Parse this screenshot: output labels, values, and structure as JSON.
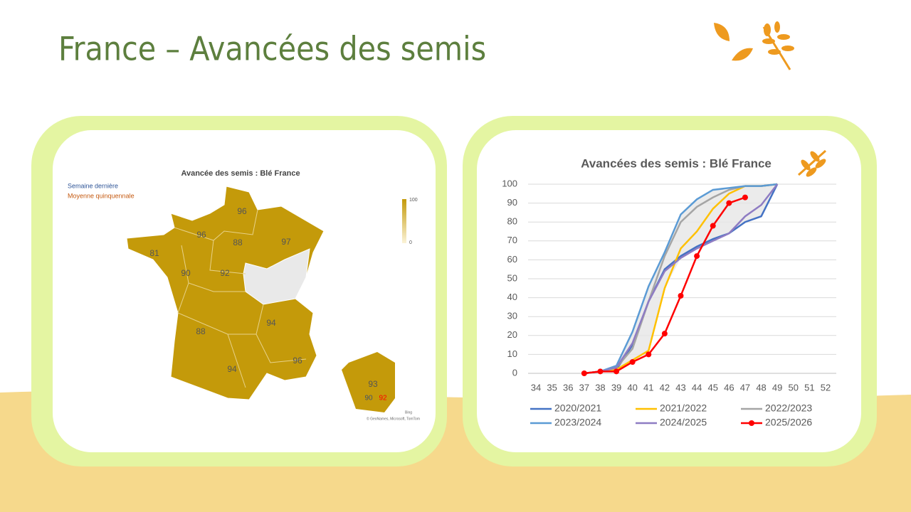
{
  "title": "France – Avancées des semis",
  "map": {
    "title": "Avancée des semis : Blé France",
    "legend_last_week": "Semaine dernière",
    "legend_average": "Moyenne quinquennale",
    "scale_max": "100",
    "scale_min": "0",
    "regions": [
      "96",
      "96",
      "97",
      "88",
      "81",
      "90",
      "92",
      "94",
      "88",
      "94",
      "96",
      "93",
      "90",
      "92"
    ],
    "source_bing": "Bing",
    "source": "© GeoNames, Microsoft, TomTom"
  },
  "chart_data": {
    "type": "line",
    "title": "Avancées des semis : Blé France",
    "x": [
      34,
      35,
      36,
      37,
      38,
      39,
      40,
      41,
      42,
      43,
      44,
      45,
      46,
      47,
      48,
      49,
      50,
      51,
      52
    ],
    "xlim": [
      34,
      52
    ],
    "xticks": [
      34,
      35,
      36,
      37,
      38,
      39,
      40,
      41,
      42,
      43,
      44,
      45,
      46,
      47,
      48,
      49,
      50,
      51,
      52
    ],
    "ylim": [
      0,
      100
    ],
    "yticks": [
      0,
      10,
      20,
      30,
      40,
      50,
      60,
      70,
      80,
      90,
      100
    ],
    "grid": true,
    "series": [
      {
        "name": "2020/2021",
        "color": "#4472c4",
        "values": [
          null,
          null,
          null,
          0,
          1,
          2,
          15,
          38,
          55,
          62,
          67,
          71,
          74,
          80,
          83,
          100,
          null,
          null,
          null
        ]
      },
      {
        "name": "2021/2022",
        "color": "#ffc000",
        "values": [
          null,
          null,
          null,
          0,
          1,
          2,
          7,
          12,
          45,
          66,
          75,
          87,
          95,
          99,
          99,
          100,
          null,
          null,
          null
        ]
      },
      {
        "name": "2022/2023",
        "color": "#a5a5a5",
        "values": [
          null,
          null,
          null,
          0,
          1,
          3,
          13,
          38,
          62,
          80,
          88,
          93,
          97,
          99,
          99,
          100,
          null,
          null,
          null
        ]
      },
      {
        "name": "2023/2024",
        "color": "#5b9bd5",
        "values": [
          null,
          null,
          null,
          0,
          1,
          4,
          22,
          46,
          64,
          84,
          92,
          97,
          98,
          99,
          99,
          100,
          null,
          null,
          null
        ]
      },
      {
        "name": "2024/2025",
        "color": "#8e7cc3",
        "values": [
          null,
          null,
          null,
          0,
          1,
          3,
          16,
          38,
          54,
          61,
          66,
          70,
          74,
          83,
          89,
          100,
          null,
          null,
          null
        ]
      },
      {
        "name": "2025/2026",
        "color": "#ff0000",
        "marker": "circle",
        "values": [
          null,
          null,
          null,
          0,
          1,
          1,
          6,
          10,
          21,
          41,
          62,
          78,
          90,
          93,
          null,
          null,
          null,
          null,
          null
        ]
      }
    ]
  }
}
